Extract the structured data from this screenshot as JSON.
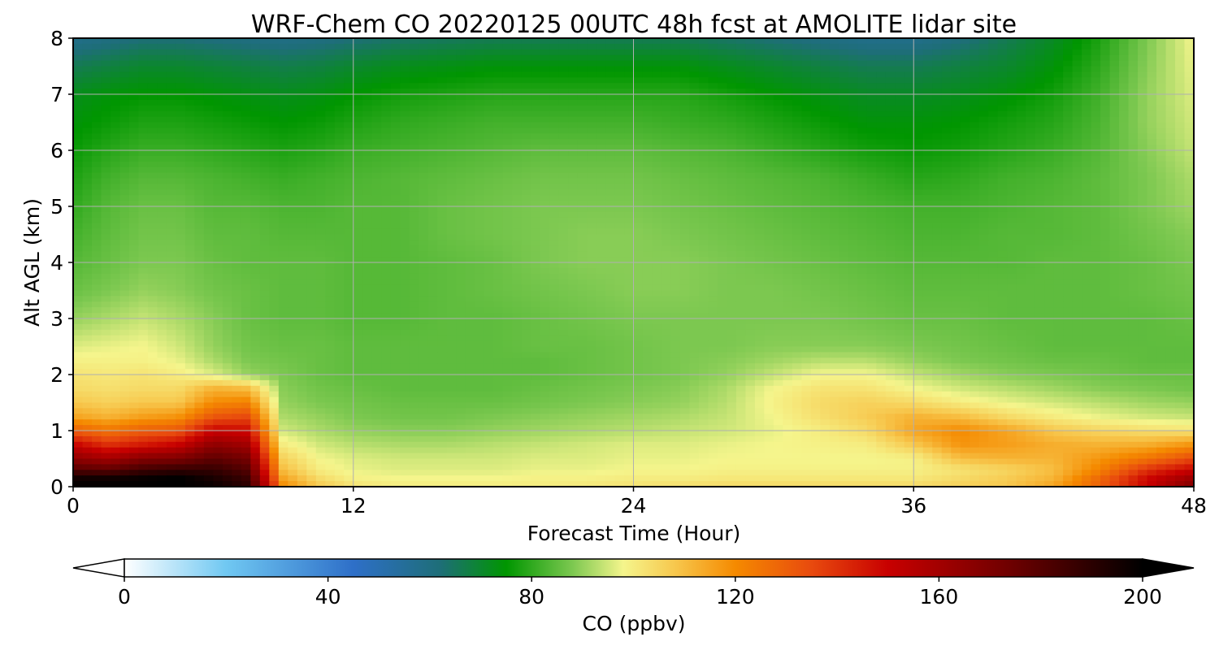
{
  "chart_data": {
    "type": "heatmap",
    "title": "WRF-Chem CO  20220125 00UTC 48h fcst at AMOLITE lidar site",
    "xlabel": "Forecast Time (Hour)",
    "ylabel": "Alt AGL (km)",
    "xlim": [
      0,
      48
    ],
    "ylim": [
      0,
      8
    ],
    "x_ticks": [
      "0",
      "12",
      "24",
      "36",
      "48"
    ],
    "y_ticks": [
      "0",
      "1",
      "2",
      "3",
      "4",
      "5",
      "6",
      "7",
      "8"
    ],
    "grid": true,
    "colorbar": {
      "label": "CO  (ppbv)",
      "range": [
        0,
        200
      ],
      "ticks": [
        "0",
        "40",
        "80",
        "120",
        "160",
        "200"
      ],
      "extend": "both",
      "orientation": "horizontal",
      "colormap_stops": [
        {
          "value": 0,
          "color": "#ffffff"
        },
        {
          "value": 20,
          "color": "#70c8f2"
        },
        {
          "value": 45,
          "color": "#2e6fc8"
        },
        {
          "value": 62,
          "color": "#1e6e78"
        },
        {
          "value": 75,
          "color": "#009600"
        },
        {
          "value": 88,
          "color": "#7cc850"
        },
        {
          "value": 98,
          "color": "#f5f58c"
        },
        {
          "value": 108,
          "color": "#f7c84e"
        },
        {
          "value": 120,
          "color": "#f58a00"
        },
        {
          "value": 135,
          "color": "#e84a0e"
        },
        {
          "value": 150,
          "color": "#c80000"
        },
        {
          "value": 175,
          "color": "#6a0000"
        },
        {
          "value": 200,
          "color": "#000000"
        }
      ]
    },
    "x_hours": [
      0,
      1.5,
      3,
      4.5,
      6,
      7.5,
      9,
      10.5,
      12,
      14,
      16,
      18,
      20,
      22,
      24,
      26,
      28,
      30,
      32,
      34,
      36,
      38,
      40,
      42,
      44,
      46,
      48
    ],
    "y_km": [
      0,
      0.15,
      0.3,
      0.5,
      0.75,
      1,
      1.25,
      1.5,
      1.75,
      2,
      2.25,
      2.5,
      3,
      3.5,
      4,
      4.5,
      5,
      5.5,
      6,
      6.5,
      7,
      7.5,
      8
    ],
    "values_ppbv": [
      [
        200,
        200,
        200,
        200,
        198,
        190,
        120,
        108,
        102,
        100,
        100,
        100,
        100,
        101,
        102,
        103,
        104,
        104,
        104,
        104,
        104,
        106,
        108,
        115,
        130,
        150,
        170
      ],
      [
        196,
        196,
        198,
        200,
        194,
        186,
        115,
        104,
        99,
        98,
        98,
        98,
        99,
        99,
        100,
        100,
        101,
        101,
        101,
        101,
        101,
        104,
        107,
        112,
        128,
        148,
        162
      ],
      [
        180,
        178,
        185,
        188,
        188,
        180,
        110,
        100,
        97,
        96,
        96,
        96,
        97,
        97,
        98,
        98,
        99,
        99,
        99,
        99,
        99,
        102,
        105,
        110,
        122,
        140,
        150
      ],
      [
        165,
        160,
        168,
        170,
        178,
        172,
        106,
        98,
        96,
        95,
        95,
        95,
        96,
        96,
        97,
        97,
        98,
        98,
        98,
        98,
        99,
        110,
        112,
        112,
        118,
        125,
        135
      ],
      [
        150,
        140,
        145,
        150,
        165,
        160,
        100,
        95,
        93,
        92,
        92,
        93,
        94,
        95,
        96,
        96,
        97,
        98,
        99,
        100,
        108,
        118,
        116,
        113,
        112,
        113,
        118
      ],
      [
        130,
        125,
        130,
        132,
        150,
        148,
        95,
        92,
        90,
        89,
        89,
        90,
        91,
        92,
        93,
        94,
        95,
        97,
        100,
        104,
        115,
        120,
        115,
        108,
        105,
        103,
        102
      ],
      [
        115,
        112,
        116,
        118,
        132,
        135,
        92,
        90,
        88,
        87,
        87,
        88,
        89,
        90,
        91,
        92,
        94,
        98,
        103,
        107,
        112,
        110,
        104,
        100,
        97,
        95,
        94
      ],
      [
        108,
        106,
        108,
        108,
        120,
        122,
        90,
        88,
        87,
        86,
        86,
        86,
        87,
        88,
        89,
        90,
        93,
        99,
        104,
        106,
        104,
        100,
        97,
        95,
        93,
        91,
        90
      ],
      [
        104,
        103,
        104,
        104,
        112,
        110,
        89,
        87,
        86,
        85,
        85,
        85,
        86,
        87,
        88,
        89,
        92,
        98,
        102,
        102,
        98,
        95,
        93,
        91,
        89,
        88,
        87
      ],
      [
        102,
        101,
        102,
        100,
        96,
        90,
        88,
        86,
        85,
        85,
        85,
        85,
        85,
        86,
        87,
        88,
        90,
        94,
        98,
        98,
        94,
        91,
        89,
        88,
        87,
        86,
        86
      ],
      [
        99,
        99,
        99,
        97,
        92,
        88,
        87,
        86,
        85,
        85,
        85,
        85,
        85,
        86,
        87,
        88,
        89,
        91,
        93,
        93,
        90,
        88,
        87,
        86,
        86,
        85,
        85
      ],
      [
        96,
        97,
        98,
        95,
        90,
        87,
        86,
        86,
        85,
        85,
        85,
        85,
        86,
        86,
        87,
        88,
        88,
        89,
        89,
        89,
        88,
        87,
        86,
        85,
        85,
        85,
        85
      ],
      [
        90,
        92,
        94,
        92,
        89,
        86,
        85,
        85,
        84,
        84,
        85,
        85,
        86,
        87,
        88,
        88,
        88,
        88,
        88,
        87,
        86,
        86,
        85,
        85,
        85,
        85,
        86
      ],
      [
        86,
        88,
        90,
        89,
        87,
        86,
        85,
        85,
        84,
        84,
        85,
        86,
        87,
        88,
        89,
        89,
        88,
        88,
        87,
        86,
        85,
        85,
        85,
        85,
        85,
        86,
        87
      ],
      [
        84,
        86,
        88,
        88,
        86,
        85,
        85,
        85,
        84,
        84,
        85,
        86,
        88,
        89,
        89,
        89,
        88,
        87,
        86,
        85,
        84,
        84,
        84,
        85,
        85,
        86,
        88
      ],
      [
        82,
        85,
        87,
        87,
        85,
        85,
        84,
        84,
        84,
        84,
        86,
        87,
        88,
        89,
        89,
        88,
        87,
        86,
        85,
        84,
        83,
        83,
        84,
        84,
        85,
        87,
        89
      ],
      [
        80,
        84,
        86,
        86,
        84,
        84,
        83,
        83,
        84,
        84,
        86,
        87,
        88,
        88,
        88,
        87,
        86,
        85,
        84,
        83,
        82,
        82,
        83,
        84,
        85,
        88,
        91
      ],
      [
        78,
        82,
        84,
        84,
        83,
        82,
        81,
        82,
        83,
        84,
        85,
        86,
        87,
        87,
        87,
        86,
        85,
        84,
        83,
        81,
        79,
        80,
        82,
        83,
        85,
        88,
        92
      ],
      [
        76,
        79,
        81,
        81,
        80,
        79,
        78,
        79,
        81,
        82,
        83,
        84,
        85,
        85,
        85,
        84,
        83,
        81,
        79,
        77,
        76,
        77,
        79,
        81,
        84,
        89,
        94
      ],
      [
        74,
        76,
        78,
        78,
        77,
        76,
        75,
        76,
        78,
        80,
        81,
        82,
        82,
        82,
        82,
        81,
        80,
        78,
        76,
        74,
        74,
        75,
        77,
        79,
        83,
        90,
        95
      ],
      [
        72,
        74,
        75,
        75,
        74,
        73,
        72,
        73,
        75,
        77,
        78,
        79,
        79,
        79,
        79,
        79,
        77,
        75,
        73,
        71,
        71,
        72,
        74,
        77,
        82,
        90,
        96
      ],
      [
        66,
        68,
        70,
        70,
        69,
        68,
        67,
        68,
        70,
        72,
        73,
        74,
        74,
        74,
        74,
        74,
        72,
        70,
        68,
        66,
        66,
        68,
        70,
        74,
        80,
        89,
        97
      ],
      [
        58,
        60,
        62,
        62,
        61,
        60,
        59,
        60,
        62,
        64,
        65,
        66,
        66,
        66,
        66,
        66,
        64,
        62,
        60,
        58,
        58,
        61,
        66,
        71,
        78,
        88,
        98
      ]
    ]
  }
}
